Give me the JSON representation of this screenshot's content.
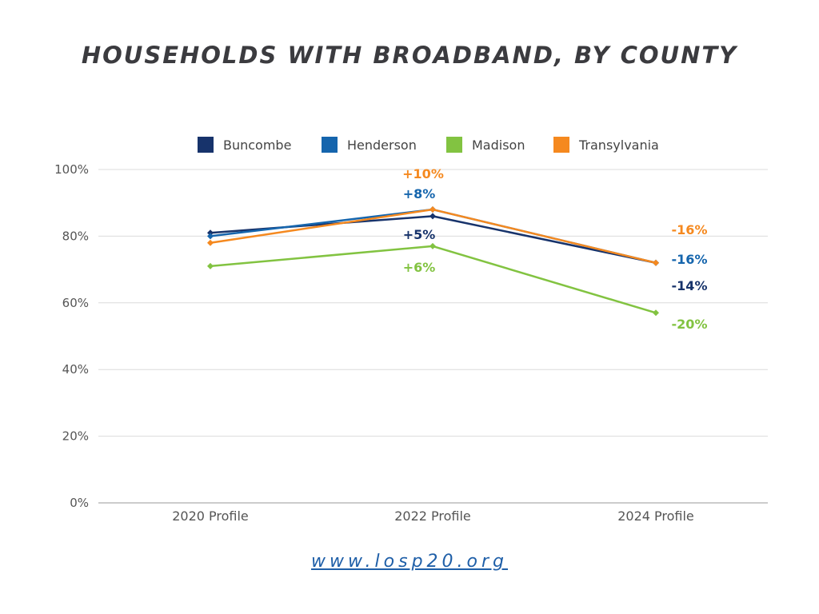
{
  "title": "HOUSEHOLDS WITH BROADBAND, BY COUNTY",
  "footer": {
    "link": "www.losp20.org"
  },
  "chart_data": {
    "type": "line",
    "title": "HOUSEHOLDS WITH BROADBAND, BY COUNTY",
    "categories": [
      "2020 Profile",
      "2022 Profile",
      "2024 Profile"
    ],
    "ylim": [
      0,
      100
    ],
    "yticks": [
      "0%",
      "20%",
      "40%",
      "60%",
      "80%",
      "100%"
    ],
    "ytick_values": [
      0,
      20,
      40,
      60,
      80,
      100
    ],
    "grid": true,
    "legend_position": "top",
    "series": [
      {
        "name": "Buncombe",
        "color": "#17336b",
        "values": [
          81,
          86,
          72
        ],
        "labels": [
          "",
          "+5%",
          "-14%"
        ]
      },
      {
        "name": "Henderson",
        "color": "#1565ad",
        "values": [
          80,
          88,
          72
        ],
        "labels": [
          "",
          "+8%",
          "-16%"
        ]
      },
      {
        "name": "Madison",
        "color": "#82c341",
        "values": [
          71,
          77,
          57
        ],
        "labels": [
          "",
          "+6%",
          "-20%"
        ]
      },
      {
        "name": "Transylvania",
        "color": "#f5891f",
        "values": [
          78,
          88,
          72
        ],
        "labels": [
          "",
          "+10%",
          "-16%"
        ]
      }
    ]
  }
}
